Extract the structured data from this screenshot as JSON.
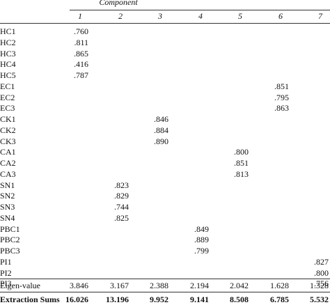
{
  "table": {
    "group_header": "Component",
    "columns": [
      "1",
      "2",
      "3",
      "4",
      "5",
      "6",
      "7"
    ],
    "rows": [
      [
        "HC1",
        ".760",
        null,
        null,
        null,
        null,
        null,
        null
      ],
      [
        "HC2",
        ".811",
        null,
        null,
        null,
        null,
        null,
        null
      ],
      [
        "HC3",
        ".865",
        null,
        null,
        null,
        null,
        null,
        null
      ],
      [
        "HC4",
        ".416",
        null,
        null,
        null,
        null,
        null,
        null
      ],
      [
        "HC5",
        ".787",
        null,
        null,
        null,
        null,
        null,
        null
      ],
      [
        "EC1",
        null,
        null,
        null,
        null,
        null,
        ".851",
        null
      ],
      [
        "EC2",
        null,
        null,
        null,
        null,
        null,
        ".795",
        null
      ],
      [
        "EC3",
        null,
        null,
        null,
        null,
        null,
        ".863",
        null
      ],
      [
        "CK1",
        null,
        null,
        ".846",
        null,
        null,
        null,
        null
      ],
      [
        "CK2",
        null,
        null,
        ".884",
        null,
        null,
        null,
        null
      ],
      [
        "CK3",
        null,
        null,
        ".890",
        null,
        null,
        null,
        null
      ],
      [
        "CA1",
        null,
        null,
        null,
        null,
        ".800",
        null,
        null
      ],
      [
        "CA2",
        null,
        null,
        null,
        null,
        ".851",
        null,
        null
      ],
      [
        "CA3",
        null,
        null,
        null,
        null,
        ".813",
        null,
        null
      ],
      [
        "SN1",
        null,
        ".823",
        null,
        null,
        null,
        null,
        null
      ],
      [
        "SN2",
        null,
        ".829",
        null,
        null,
        null,
        null,
        null
      ],
      [
        "SN3",
        null,
        ".744",
        null,
        null,
        null,
        null,
        null
      ],
      [
        "SN4",
        null,
        ".825",
        null,
        null,
        null,
        null,
        null
      ],
      [
        "PBC1",
        null,
        null,
        null,
        ".849",
        null,
        null,
        null
      ],
      [
        "PBC2",
        null,
        null,
        null,
        ".889",
        null,
        null,
        null
      ],
      [
        "PBC3",
        null,
        null,
        null,
        ".799",
        null,
        null,
        null
      ],
      [
        "PI1",
        null,
        null,
        null,
        null,
        null,
        null,
        ".827"
      ],
      [
        "PI2",
        null,
        null,
        null,
        null,
        null,
        null,
        ".800"
      ],
      [
        "PI3",
        null,
        null,
        null,
        null,
        null,
        null,
        ".756"
      ]
    ],
    "eigen_row": [
      "Eigen-value",
      "3.846",
      "3.167",
      "2.388",
      "2.194",
      "2.042",
      "1.628",
      "1.328"
    ],
    "extraction_row": [
      "Extraction Sums",
      "16.026",
      "13.196",
      "9.952",
      "9.141",
      "8.508",
      "6.785",
      "5.532"
    ]
  }
}
